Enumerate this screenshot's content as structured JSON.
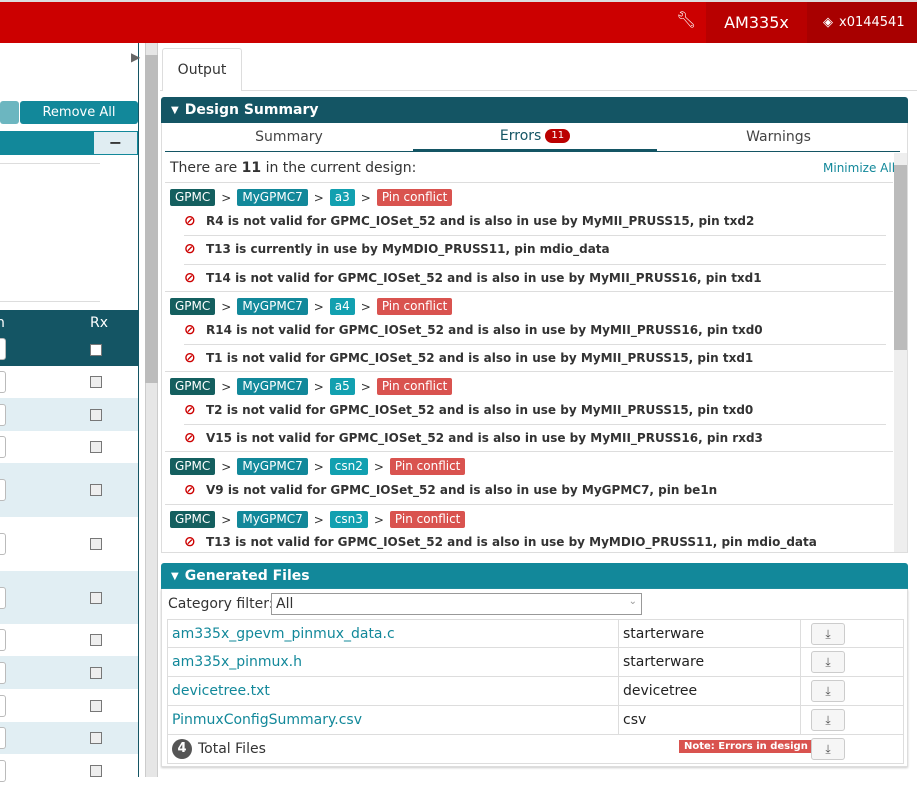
{
  "header": {
    "device": "AM335x",
    "user": "x0144541",
    "tools_icon": "wrench-icon",
    "user_icon": "diamond-user-icon"
  },
  "left": {
    "remove_all": "Remove All",
    "collapse": "−",
    "col_rx": "Rx",
    "row_count": 12
  },
  "output_tab": "Output",
  "design_summary": {
    "title": "Design Summary",
    "tabs": [
      "Summary",
      "Errors",
      "Warnings"
    ],
    "active_tab": "Errors",
    "errors_count": "11",
    "intro_pre": "There are ",
    "intro_count": "11",
    "intro_post": " in the current design:",
    "minimize_all": "Minimize All",
    "groups": [
      {
        "crumbs": [
          "GPMC",
          "MyGPMC7",
          "a3"
        ],
        "status": "Pin conflict",
        "errors": [
          "R4 is not valid for GPMC_IOSet_52 and is also in use by MyMII_PRUSS15, pin txd2",
          "T13 is currently in use by MyMDIO_PRUSS11, pin mdio_data",
          "T14 is not valid for GPMC_IOSet_52 and is also in use by MyMII_PRUSS16, pin txd1"
        ]
      },
      {
        "crumbs": [
          "GPMC",
          "MyGPMC7",
          "a4"
        ],
        "status": "Pin conflict",
        "errors": [
          "R14 is not valid for GPMC_IOSet_52 and is also in use by MyMII_PRUSS16, pin txd0",
          "T1 is not valid for GPMC_IOSet_52 and is also in use by MyMII_PRUSS15, pin txd1"
        ]
      },
      {
        "crumbs": [
          "GPMC",
          "MyGPMC7",
          "a5"
        ],
        "status": "Pin conflict",
        "errors": [
          "T2 is not valid for GPMC_IOSet_52 and is also in use by MyMII_PRUSS15, pin txd0",
          "V15 is not valid for GPMC_IOSet_52 and is also in use by MyMII_PRUSS16, pin rxd3"
        ]
      },
      {
        "crumbs": [
          "GPMC",
          "MyGPMC7",
          "csn2"
        ],
        "status": "Pin conflict",
        "errors": [
          "V9 is not valid for GPMC_IOSet_52 and is also in use by MyGPMC7, pin be1n"
        ]
      },
      {
        "crumbs": [
          "GPMC",
          "MyGPMC7",
          "csn3"
        ],
        "status": "Pin conflict",
        "errors": [
          "T13 is not valid for GPMC_IOSet_52 and is also in use by MyMDIO_PRUSS11, pin mdio_data"
        ]
      }
    ]
  },
  "generated_files": {
    "title": "Generated Files",
    "filter_label": "Category filter:",
    "filter_value": "All",
    "files": [
      {
        "name": "am335x_gpevm_pinmux_data.c",
        "category": "starterware"
      },
      {
        "name": "am335x_pinmux.h",
        "category": "starterware"
      },
      {
        "name": "devicetree.txt",
        "category": "devicetree"
      },
      {
        "name": "PinmuxConfigSummary.csv",
        "category": "csv"
      }
    ],
    "total_count": "4",
    "total_label": "Total Files",
    "note": "Note: Errors in design"
  },
  "colors": {
    "brand_red": "#cc0000",
    "dark_teal": "#145564",
    "teal": "#12889a",
    "error_tag": "#d9534f"
  }
}
